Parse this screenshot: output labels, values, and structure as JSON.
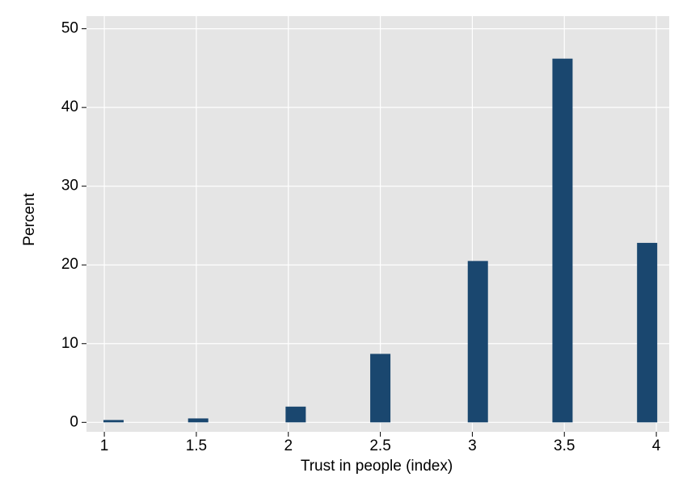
{
  "chart_data": {
    "type": "bar",
    "x_label": "Trust in people (index)",
    "y_label": "Percent",
    "x": [
      1.05,
      1.51,
      2.04,
      2.5,
      3.03,
      3.49,
      3.95
    ],
    "values": [
      0.3,
      0.5,
      2.0,
      8.7,
      20.5,
      46.2,
      22.8
    ],
    "color": "#1a476f",
    "xlim": [
      0.903,
      4.07
    ],
    "xticks": [
      1,
      1.5,
      2,
      2.5,
      3,
      3.5,
      4
    ],
    "ylim": [
      -1.2,
      51.6
    ],
    "yticks": [
      0,
      10,
      20,
      30,
      40,
      50
    ],
    "grid": true
  }
}
